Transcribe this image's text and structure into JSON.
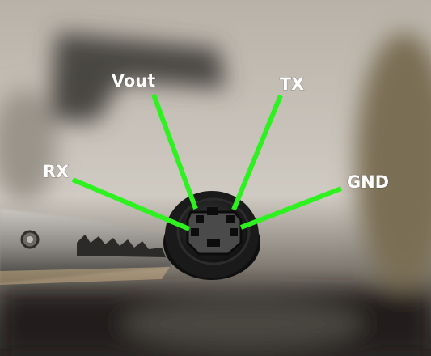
{
  "labels": [
    "Vout",
    "TX",
    "RX",
    "GND"
  ]
}
